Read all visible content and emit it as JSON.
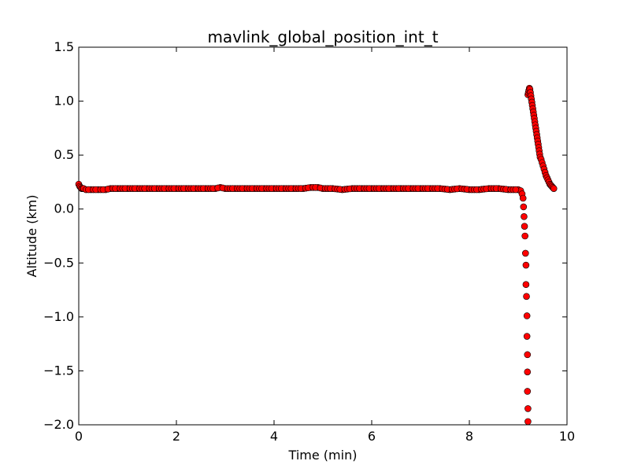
{
  "chart_data": {
    "type": "scatter",
    "title": "mavlink_global_position_int_t",
    "xlabel": "Time (min)",
    "ylabel": "Altitude (km)",
    "xlim": [
      0,
      10
    ],
    "ylim": [
      -2.0,
      1.5
    ],
    "xticks": [
      0,
      2,
      4,
      6,
      8,
      10
    ],
    "xtick_labels": [
      "0",
      "2",
      "4",
      "6",
      "8",
      "10"
    ],
    "yticks": [
      -2.0,
      -1.5,
      -1.0,
      -0.5,
      0.0,
      0.5,
      1.0,
      1.5
    ],
    "ytick_labels": [
      "−2.0",
      "−1.5",
      "−1.0",
      "−0.5",
      "0.0",
      "0.5",
      "1.0",
      "1.5"
    ],
    "grid": false,
    "legend": "none",
    "marker_color": "#ff0000",
    "marker_edge_color": "#000000",
    "series": [
      {
        "x": [
          0.0,
          0.02,
          0.04,
          0.06,
          0.08,
          0.1,
          0.15,
          0.25,
          0.4,
          0.55,
          0.65,
          0.8,
          1.0,
          1.2,
          1.4,
          1.6,
          1.8,
          2.0,
          2.2,
          2.4,
          2.6,
          2.8,
          2.9,
          3.0,
          3.2,
          3.4,
          3.6,
          3.8,
          4.0,
          4.2,
          4.4,
          4.6,
          4.75,
          4.9,
          5.0,
          5.2,
          5.4,
          5.6,
          5.8,
          6.0,
          6.2,
          6.4,
          6.6,
          6.8,
          7.0,
          7.2,
          7.4,
          7.6,
          7.8,
          8.0,
          8.2,
          8.4,
          8.6,
          8.8,
          9.0,
          9.05,
          9.08,
          9.1,
          9.11,
          9.12,
          9.13,
          9.14,
          9.15,
          9.16,
          9.16,
          9.17,
          9.18,
          9.18,
          9.19,
          9.19,
          9.19,
          9.2,
          9.2,
          9.2,
          9.21,
          9.22,
          9.23,
          9.24,
          9.25,
          9.26,
          9.27,
          9.28,
          9.29,
          9.3,
          9.31,
          9.32,
          9.33,
          9.34,
          9.35,
          9.36,
          9.37,
          9.38,
          9.39,
          9.4,
          9.41,
          9.42,
          9.43,
          9.44,
          9.45,
          9.47,
          9.49,
          9.51,
          9.53,
          9.55,
          9.57,
          9.59,
          9.61,
          9.63,
          9.65,
          9.67,
          9.69,
          9.71,
          9.73
        ],
        "y": [
          0.23,
          0.21,
          0.2,
          0.19,
          0.19,
          0.19,
          0.18,
          0.18,
          0.18,
          0.18,
          0.19,
          0.19,
          0.19,
          0.19,
          0.19,
          0.19,
          0.19,
          0.19,
          0.19,
          0.19,
          0.19,
          0.19,
          0.2,
          0.19,
          0.19,
          0.19,
          0.19,
          0.19,
          0.19,
          0.19,
          0.19,
          0.19,
          0.2,
          0.2,
          0.19,
          0.19,
          0.18,
          0.19,
          0.19,
          0.19,
          0.19,
          0.19,
          0.19,
          0.19,
          0.19,
          0.19,
          0.19,
          0.18,
          0.19,
          0.18,
          0.18,
          0.19,
          0.19,
          0.18,
          0.18,
          0.17,
          0.14,
          0.1,
          0.02,
          -0.07,
          -0.16,
          -0.25,
          -0.41,
          -0.52,
          -0.7,
          -0.81,
          -0.99,
          -1.18,
          -1.35,
          -1.51,
          -1.69,
          -1.85,
          -1.97,
          1.06,
          1.08,
          1.1,
          1.12,
          1.11,
          1.08,
          1.05,
          1.02,
          0.99,
          0.96,
          0.93,
          0.9,
          0.87,
          0.84,
          0.81,
          0.78,
          0.75,
          0.72,
          0.69,
          0.66,
          0.63,
          0.6,
          0.57,
          0.54,
          0.51,
          0.48,
          0.46,
          0.43,
          0.4,
          0.37,
          0.34,
          0.31,
          0.29,
          0.27,
          0.25,
          0.23,
          0.22,
          0.21,
          0.2,
          0.19
        ]
      }
    ]
  }
}
